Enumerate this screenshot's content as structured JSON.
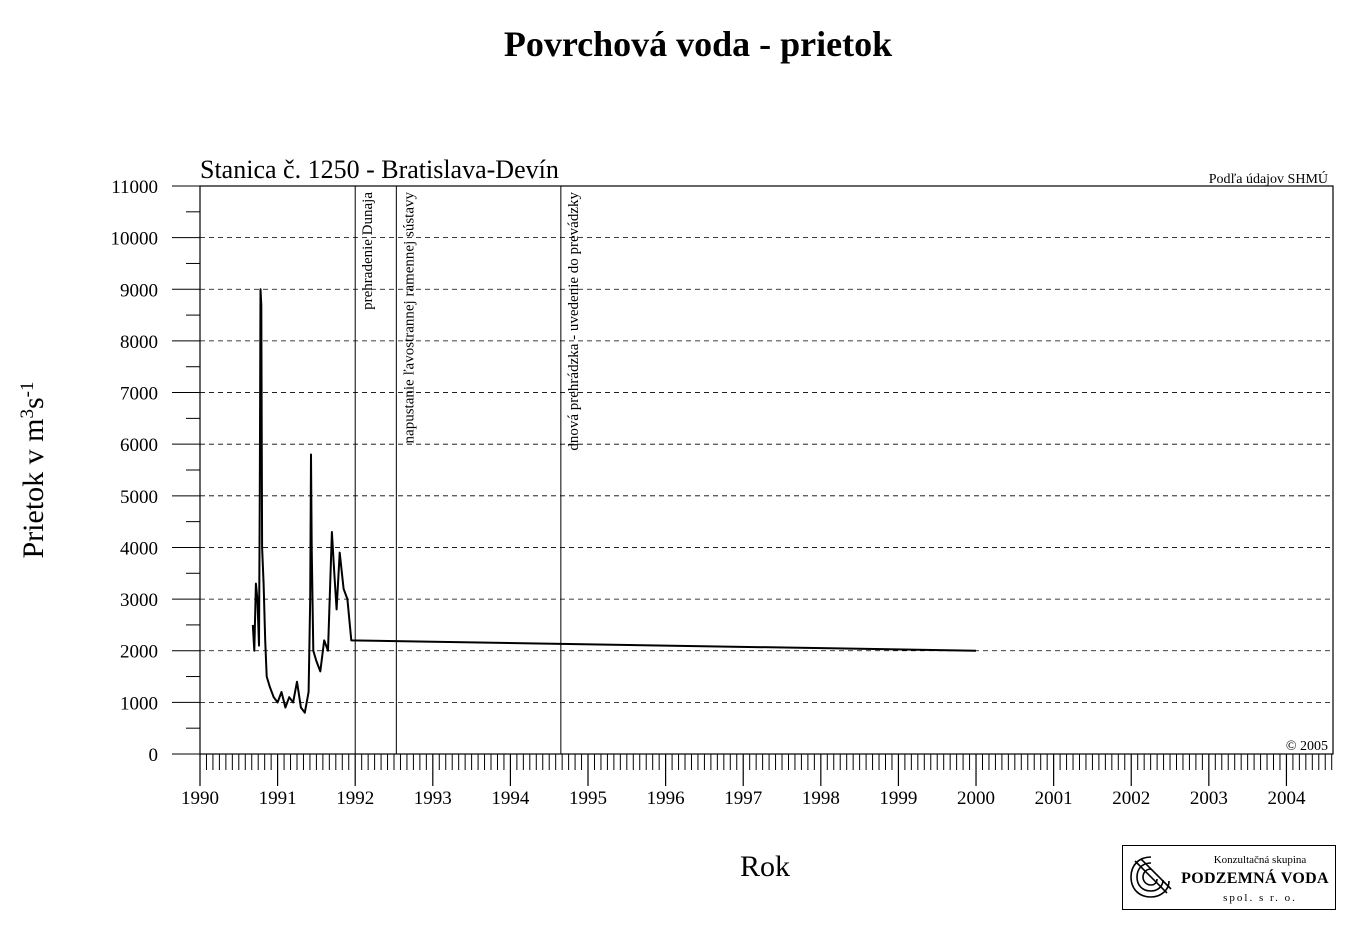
{
  "chart_data": {
    "type": "line",
    "title": "Povrchová voda - prietok",
    "subtitle": "Stanica č. 1250 - Bratislava-Devín",
    "source_note": "Podľa údajov SHMÚ",
    "copyright": "© 2005",
    "xlabel": "Rok",
    "ylabel_main": "Prietok v m",
    "ylabel_sup1": "3",
    "ylabel_mid": "s",
    "ylabel_sup2": "-1",
    "xlim": [
      1990.0,
      2004.6
    ],
    "ylim": [
      0,
      11000
    ],
    "yticks": [
      0,
      1000,
      2000,
      3000,
      4000,
      5000,
      6000,
      7000,
      8000,
      9000,
      10000,
      11000
    ],
    "ytick_labels": [
      "0",
      "1000",
      "2000",
      "3000",
      "4000",
      "5000",
      "6000",
      "7000",
      "8000",
      "9000",
      "10000",
      "11000"
    ],
    "xticks": [
      1990,
      1991,
      1992,
      1993,
      1994,
      1995,
      1996,
      1997,
      1998,
      1999,
      2000,
      2001,
      2002,
      2003,
      2004
    ],
    "xtick_labels": [
      "1990",
      "1991",
      "1992",
      "1993",
      "1994",
      "1995",
      "1996",
      "1997",
      "1998",
      "1999",
      "2000",
      "2001",
      "2002",
      "2003",
      "2004"
    ],
    "grid": "horizontal-dashed",
    "events": [
      {
        "x": 1992.0,
        "label": "prehradenie Dunaja"
      },
      {
        "x": 1992.53,
        "label": "napustanie ľavostrannej ramennej sústavy"
      },
      {
        "x": 1994.65,
        "label": "dnová prehrádzka - uvedenie do prevádzky"
      }
    ],
    "series": [
      {
        "x": [
          1990.68,
          1990.7,
          1990.72,
          1990.74,
          1990.76,
          1990.77,
          1990.78,
          1990.79,
          1990.8,
          1990.82,
          1990.84,
          1990.86,
          1990.9,
          1990.95,
          1991.0,
          1991.05,
          1991.1,
          1991.15,
          1991.2,
          1991.25,
          1991.3,
          1991.35,
          1991.4,
          1991.42,
          1991.43,
          1991.44,
          1991.46,
          1991.5,
          1991.55,
          1991.6,
          1991.65,
          1991.7,
          1991.73,
          1991.76,
          1991.8,
          1991.85,
          1991.9,
          1991.95,
          2000.0
        ],
        "y": [
          2500,
          2000,
          3300,
          3000,
          2100,
          5100,
          9000,
          8700,
          4000,
          3300,
          2200,
          1500,
          1300,
          1100,
          1000,
          1200,
          900,
          1100,
          1000,
          1400,
          900,
          800,
          1200,
          3000,
          5800,
          4000,
          2000,
          1800,
          1600,
          2200,
          2000,
          4300,
          3500,
          2800,
          3900,
          3200,
          3000,
          2200,
          2000
        ]
      }
    ]
  },
  "logo": {
    "line1": "Konzultačná skupina",
    "line2": "PODZEMNÁ VODA",
    "line3": "spol. s r. o."
  }
}
